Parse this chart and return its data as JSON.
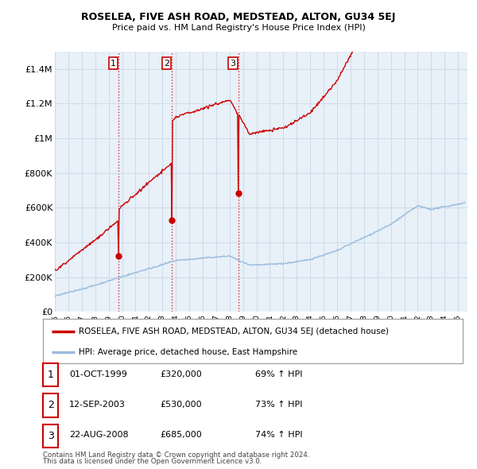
{
  "title": "ROSELEA, FIVE ASH ROAD, MEDSTEAD, ALTON, GU34 5EJ",
  "subtitle": "Price paid vs. HM Land Registry's House Price Index (HPI)",
  "legend_line1": "ROSELEA, FIVE ASH ROAD, MEDSTEAD, ALTON, GU34 5EJ (detached house)",
  "legend_line2": "HPI: Average price, detached house, East Hampshire",
  "footer1": "Contains HM Land Registry data © Crown copyright and database right 2024.",
  "footer2": "This data is licensed under the Open Government Licence v3.0.",
  "transactions": [
    {
      "num": 1,
      "date": "01-OCT-1999",
      "price": "£320,000",
      "pct": "69% ↑ HPI"
    },
    {
      "num": 2,
      "date": "12-SEP-2003",
      "price": "£530,000",
      "pct": "73% ↑ HPI"
    },
    {
      "num": 3,
      "date": "22-AUG-2008",
      "price": "£685,000",
      "pct": "74% ↑ HPI"
    }
  ],
  "transaction_dates_decimal": [
    1999.75,
    2003.7,
    2008.64
  ],
  "transaction_prices": [
    320000,
    530000,
    685000
  ],
  "vline_color": "#cc0000",
  "marker_color": "#cc0000",
  "red_line_color": "#cc0000",
  "blue_line_color": "#99bbdd",
  "chart_bg": "#e8f0f8",
  "ylim": [
    0,
    1500000
  ],
  "yticks": [
    0,
    200000,
    400000,
    600000,
    800000,
    1000000,
    1200000,
    1400000
  ],
  "ytick_labels": [
    "£0",
    "£200K",
    "£400K",
    "£600K",
    "£800K",
    "£1M",
    "£1.2M",
    "£1.4M"
  ],
  "xstart": 1995.0,
  "xend": 2025.7,
  "background_color": "#ffffff",
  "grid_color": "#c8d8e8"
}
